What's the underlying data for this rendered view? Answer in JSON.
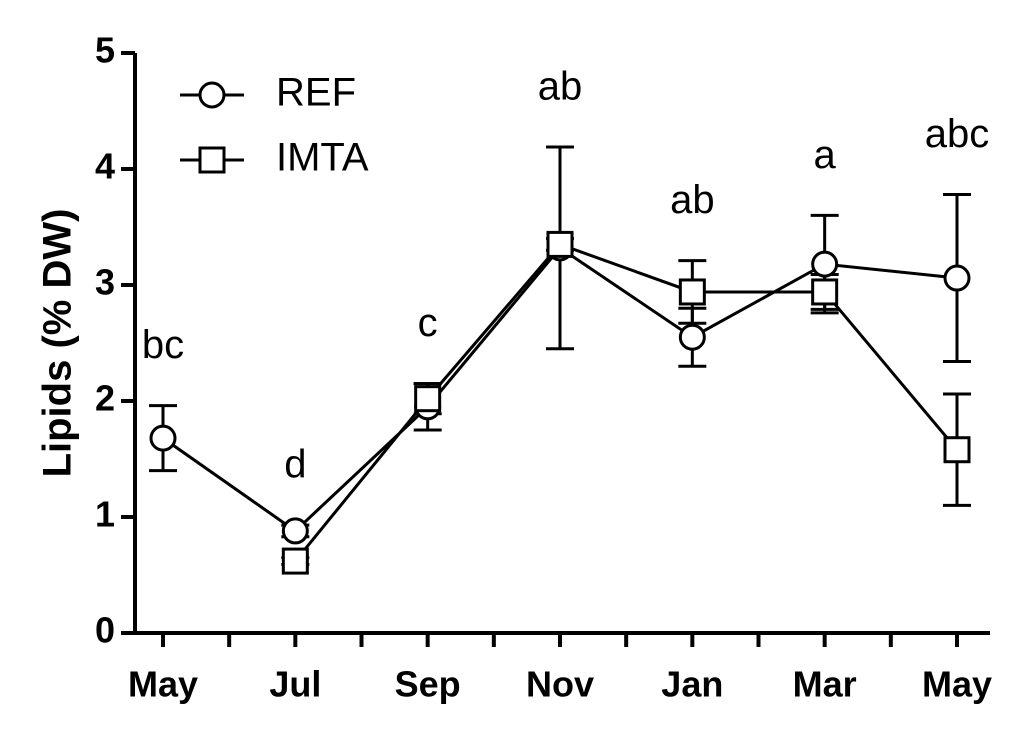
{
  "chart_data": {
    "type": "line",
    "y_label": "Lipids (% DW)",
    "categories": [
      "May",
      "Jul",
      "Sep",
      "Nov",
      "Jan",
      "Mar",
      "May"
    ],
    "series": [
      {
        "name": "REF",
        "color": "#000000",
        "marker": "circle",
        "values": [
          1.68,
          0.88,
          1.95,
          3.32,
          2.55,
          3.18,
          3.06
        ],
        "errors": [
          0.28,
          0.05,
          0.2,
          0.87,
          0.25,
          0.42,
          0.72
        ]
      },
      {
        "name": "IMTA",
        "color": "#000000",
        "marker": "square",
        "values": [
          null,
          0.62,
          2.02,
          3.35,
          2.94,
          2.94,
          1.58
        ],
        "errors": [
          null,
          0.03,
          0.13,
          0.05,
          0.27,
          0.15,
          0.48
        ]
      }
    ],
    "annotations": [
      "bc",
      "d",
      "c",
      "ab",
      "ab",
      "a",
      "abc"
    ],
    "ylim": [
      0,
      5
    ],
    "yticks": [
      0,
      1,
      2,
      3,
      4,
      5
    ],
    "legend": "top-left",
    "grid": false
  }
}
